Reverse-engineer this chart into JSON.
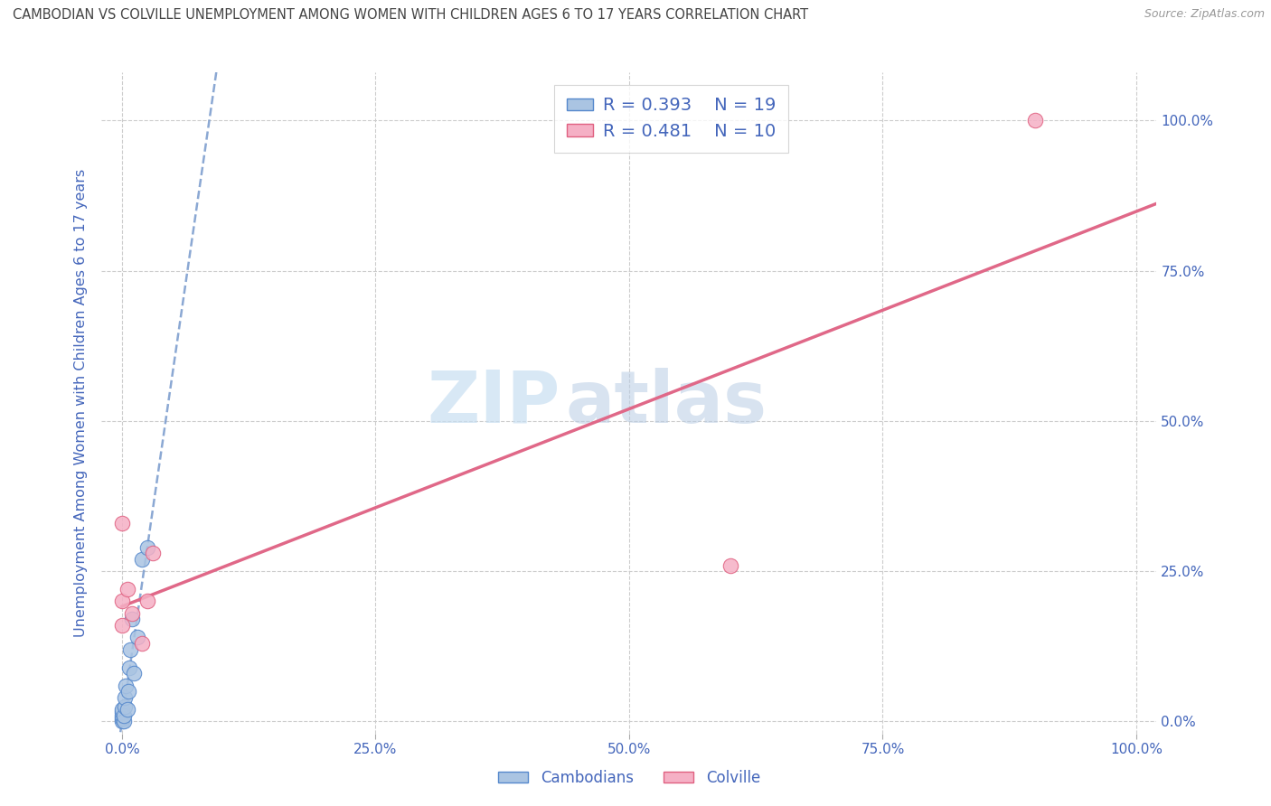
{
  "title": "CAMBODIAN VS COLVILLE UNEMPLOYMENT AMONG WOMEN WITH CHILDREN AGES 6 TO 17 YEARS CORRELATION CHART",
  "source": "Source: ZipAtlas.com",
  "ylabel": "Unemployment Among Women with Children Ages 6 to 17 years",
  "xlim": [
    -0.02,
    1.02
  ],
  "ylim": [
    -0.02,
    1.08
  ],
  "xtick_labels": [
    "0.0%",
    "25.0%",
    "50.0%",
    "75.0%",
    "100.0%"
  ],
  "xtick_vals": [
    0,
    0.25,
    0.5,
    0.75,
    1.0
  ],
  "ytick_labels": [
    "0.0%",
    "25.0%",
    "50.0%",
    "75.0%",
    "100.0%"
  ],
  "ytick_vals": [
    0,
    0.25,
    0.5,
    0.75,
    1.0
  ],
  "grid_color": "#cccccc",
  "background_color": "#ffffff",
  "cambodian_color": "#aac4e2",
  "colville_color": "#f5b0c5",
  "cambodian_edge_color": "#5588cc",
  "colville_edge_color": "#e06080",
  "title_color": "#444444",
  "axis_color": "#4466bb",
  "legend_r_cambodian": "R = 0.393",
  "legend_n_cambodian": "N = 19",
  "legend_r_colville": "R = 0.481",
  "legend_n_colville": "N = 10",
  "watermark_zip": "ZIP",
  "watermark_atlas": "atlas",
  "cambodian_x": [
    0.0,
    0.0,
    0.0,
    0.0,
    0.0,
    0.002,
    0.002,
    0.003,
    0.003,
    0.004,
    0.005,
    0.006,
    0.007,
    0.008,
    0.01,
    0.012,
    0.015,
    0.02,
    0.025
  ],
  "cambodian_y": [
    0.0,
    0.005,
    0.01,
    0.015,
    0.02,
    0.0,
    0.01,
    0.025,
    0.04,
    0.06,
    0.02,
    0.05,
    0.09,
    0.12,
    0.17,
    0.08,
    0.14,
    0.27,
    0.29
  ],
  "colville_x": [
    0.0,
    0.0,
    0.0,
    0.005,
    0.01,
    0.02,
    0.025,
    0.03,
    0.6,
    0.9
  ],
  "colville_y": [
    0.33,
    0.2,
    0.16,
    0.22,
    0.18,
    0.13,
    0.2,
    0.28,
    0.26,
    1.0
  ],
  "cambodian_line_color": "#7799cc",
  "colville_line_color": "#e06888",
  "marker_size": 140
}
